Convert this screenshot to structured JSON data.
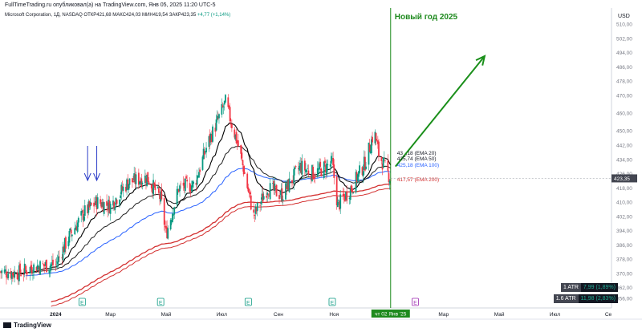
{
  "header": {
    "publisher_line": "FullTimeTrading.ru опубликовал(а) на TradingView.com, Янв 05, 2025 11:20 UTC-5",
    "symbol_line": "Microsoft Corporation, 1Д, NASDAQ  ОТКР421,68  МАКС424,03  МИН419,54  ЗАКР423,35",
    "change": "+4,77 (+1,14%)"
  },
  "annotation": {
    "text": "Новый год 2025",
    "color": "#1e8a1e"
  },
  "currency": "USD",
  "footer": {
    "brand": "TradingView"
  },
  "atr": [
    {
      "label": "1 ATR",
      "value": "7,99 (1,89%)"
    },
    {
      "label": "1.6 ATR",
      "value": "11,98 (2,83%)"
    }
  ],
  "colors": {
    "up": "#089981",
    "down": "#f23645",
    "ema20": "#000000",
    "ema50": "#2962ff",
    "ema200": "#d32f2f",
    "vline": "#1e8a1e",
    "arrow": "#1a8f1a",
    "marker": "#2e3fc9"
  },
  "chart_data": {
    "type": "candlestick",
    "instrument": "Microsoft Corporation",
    "timeframe": "1Д",
    "exchange": "NASDAQ",
    "ylim": [
      352,
      514
    ],
    "y_ticks": [
      "510,00",
      "502,00",
      "494,00",
      "486,00",
      "478,00",
      "470,00",
      "460,00",
      "450,00",
      "442,00",
      "434,00",
      "426,00",
      "418,00",
      "410,00",
      "402,00",
      "394,00",
      "386,00",
      "378,00",
      "370,00",
      "362,00",
      "356,00"
    ],
    "x_ticks": [
      "2024",
      "Мар",
      "Май",
      "Июл",
      "Сен",
      "Ноя",
      "Мар",
      "Май",
      "Июл",
      "Се"
    ],
    "current_date_label": "чт 02 Янв '25",
    "last_price": "423,35",
    "price_points": [
      [
        "2023-11-01",
        371
      ],
      [
        "2023-11-20",
        370
      ],
      [
        "2023-12-10",
        374
      ],
      [
        "2024-01-01",
        375
      ],
      [
        "2024-01-15",
        390
      ],
      [
        "2024-02-01",
        404
      ],
      [
        "2024-02-15",
        410
      ],
      [
        "2024-03-01",
        408
      ],
      [
        "2024-03-20",
        421
      ],
      [
        "2024-04-10",
        424
      ],
      [
        "2024-04-25",
        412
      ],
      [
        "2024-05-01",
        392
      ],
      [
        "2024-05-15",
        418
      ],
      [
        "2024-06-01",
        420
      ],
      [
        "2024-06-15",
        442
      ],
      [
        "2024-07-05",
        466
      ],
      [
        "2024-07-20",
        440
      ],
      [
        "2024-08-05",
        402
      ],
      [
        "2024-08-20",
        418
      ],
      [
        "2024-09-05",
        414
      ],
      [
        "2024-09-25",
        430
      ],
      [
        "2024-10-10",
        426
      ],
      [
        "2024-10-30",
        432
      ],
      [
        "2024-11-05",
        408
      ],
      [
        "2024-11-20",
        418
      ],
      [
        "2024-12-05",
        432
      ],
      [
        "2024-12-15",
        450
      ],
      [
        "2024-12-20",
        437
      ],
      [
        "2025-01-02",
        423
      ]
    ],
    "series": [
      {
        "name": "EMA 20",
        "last_value": "43_,18 (EMA 20)"
      },
      {
        "name": "EMA 50",
        "last_value": "425,74 (EMA 50)"
      },
      {
        "name": "EMA 100",
        "last_value": "425,18 (EMA 100)"
      },
      {
        "name": "EMA 200",
        "last_value": "417,57 (EMA 200)"
      }
    ],
    "projection_arrow": {
      "from": [
        "2025-01-02",
        430
      ],
      "to": [
        "2025-04-15",
        492
      ]
    },
    "event_markers": [
      {
        "date": "2024-01-30",
        "label": "E"
      },
      {
        "date": "2024-04-25",
        "label": "E"
      },
      {
        "date": "2024-07-30",
        "label": "E"
      },
      {
        "date": "2024-10-30",
        "label": "E"
      },
      {
        "date": "2025-01-29",
        "label": "E"
      }
    ],
    "signal_arrows": [
      {
        "date": "2024-02-05",
        "label": ""
      },
      {
        "date": "2024-02-15",
        "label": ""
      }
    ]
  }
}
